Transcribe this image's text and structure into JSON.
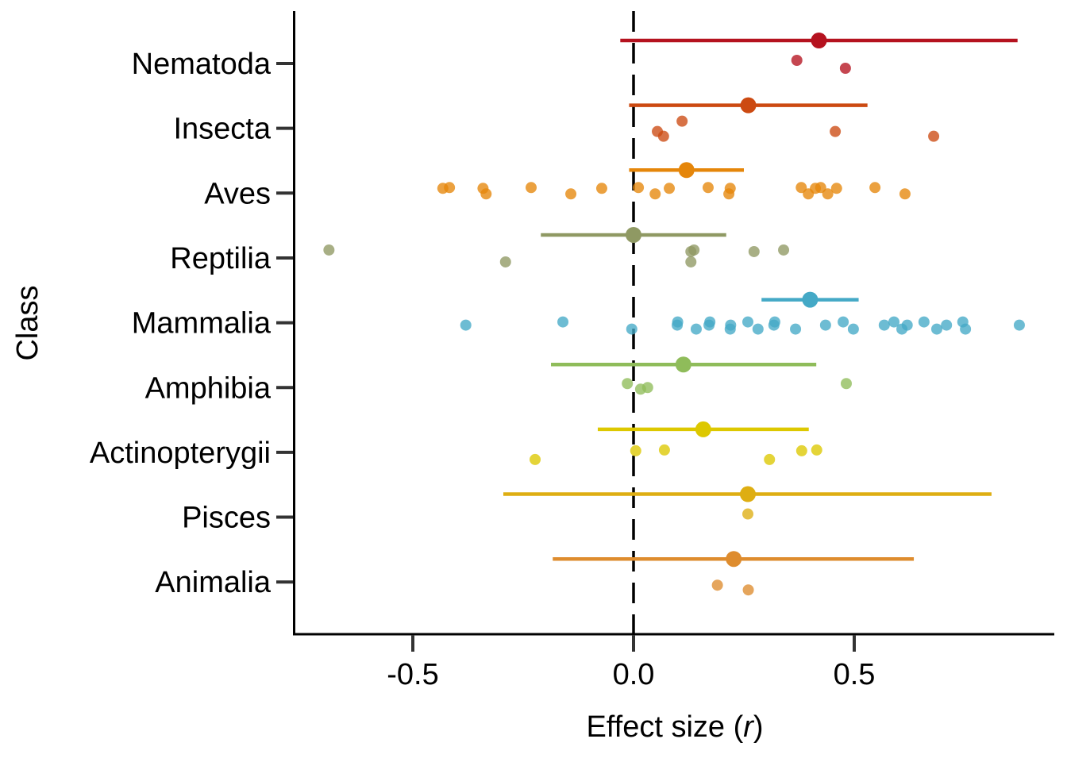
{
  "chart_data": {
    "type": "scatter",
    "subtype": "forest-plot-with-jittered-points",
    "title": "",
    "xlabel": "Effect size (r)",
    "xlabel_parts": [
      "Effect size (",
      "r",
      ")"
    ],
    "ylabel": "Class",
    "xlim": [
      -0.77,
      0.95
    ],
    "xticks": [
      -0.5,
      0.0,
      0.5
    ],
    "xtick_labels": [
      "-0.5",
      "0.0",
      "0.5"
    ],
    "reference_line": {
      "x": 0.0,
      "style": "dashed",
      "color": "#000000"
    },
    "grid": false,
    "legend": "none",
    "categories": [
      "Nematoda",
      "Insecta",
      "Aves",
      "Reptilia",
      "Mammalia",
      "Amphibia",
      "Actinopterygii",
      "Pisces",
      "Animalia"
    ],
    "series": [
      {
        "name": "Nematoda",
        "color": "#b5121f",
        "mean": 0.42,
        "ci": [
          -0.03,
          0.87
        ],
        "points": [
          0.37,
          0.48
        ]
      },
      {
        "name": "Insecta",
        "color": "#cc4a12",
        "mean": 0.26,
        "ci": [
          -0.01,
          0.53
        ],
        "points": [
          0.054,
          0.068,
          0.11,
          0.457,
          0.68
        ]
      },
      {
        "name": "Aves",
        "color": "#e5860a",
        "mean": 0.12,
        "ci": [
          -0.01,
          0.25
        ],
        "points": [
          -0.432,
          -0.417,
          -0.334,
          -0.341,
          -0.232,
          -0.142,
          -0.072,
          0.011,
          0.049,
          0.081,
          0.169,
          0.216,
          0.219,
          0.38,
          0.396,
          0.412,
          0.424,
          0.44,
          0.46,
          0.547,
          0.615
        ]
      },
      {
        "name": "Reptilia",
        "color": "#8f9963",
        "mean": 0.0,
        "ci": [
          -0.21,
          0.21
        ],
        "points": [
          -0.69,
          -0.29,
          0.13,
          0.137,
          0.13,
          0.273,
          0.34
        ]
      },
      {
        "name": "Mammalia",
        "color": "#44a9c6",
        "mean": 0.4,
        "ci": [
          0.29,
          0.51
        ],
        "points": [
          -0.38,
          -0.16,
          -0.004,
          0.099,
          0.1,
          0.142,
          0.171,
          0.173,
          0.219,
          0.22,
          0.259,
          0.282,
          0.318,
          0.32,
          0.367,
          0.435,
          0.475,
          0.498,
          0.568,
          0.59,
          0.608,
          0.62,
          0.658,
          0.687,
          0.709,
          0.746,
          0.752,
          0.874
        ]
      },
      {
        "name": "Amphibia",
        "color": "#8fbc5a",
        "mean": 0.113,
        "ci": [
          -0.187,
          0.414
        ],
        "points": [
          -0.014,
          0.016,
          0.032,
          0.482
        ]
      },
      {
        "name": "Actinopterygii",
        "color": "#ddc800",
        "mean": 0.158,
        "ci": [
          -0.081,
          0.397
        ],
        "points": [
          -0.223,
          0.005,
          0.07,
          0.308,
          0.381,
          0.415
        ]
      },
      {
        "name": "Pisces",
        "color": "#deae12",
        "mean": 0.259,
        "ci": [
          -0.295,
          0.811
        ],
        "points": [
          0.259
        ]
      },
      {
        "name": "Animalia",
        "color": "#de8c2e",
        "mean": 0.227,
        "ci": [
          -0.183,
          0.635
        ],
        "points": [
          0.19,
          0.26
        ]
      }
    ]
  }
}
